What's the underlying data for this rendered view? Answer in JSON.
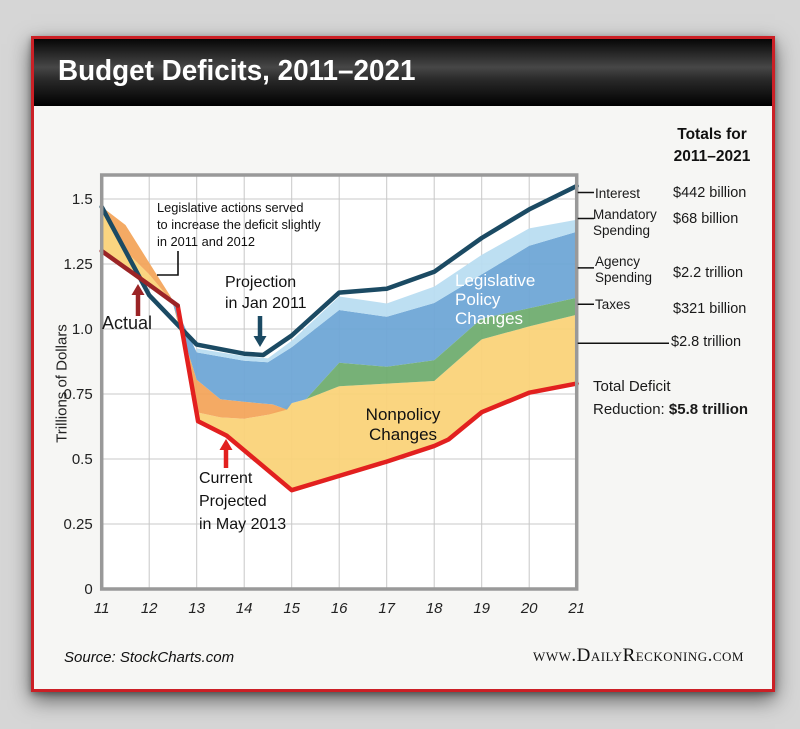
{
  "header": {
    "title": "Budget Deficits, 2011–2021"
  },
  "footer": {
    "source": "Source: StockCharts.com",
    "site": "www.DailyReckoning.com"
  },
  "totals_panel": {
    "title_line1": "Totals for",
    "title_line2": "2011–2021",
    "rows": [
      {
        "label": "Interest",
        "label2": "",
        "value": "$442 billion"
      },
      {
        "label": "Mandatory",
        "label2": "Spending",
        "value": "$68 billion"
      },
      {
        "label": "Agency",
        "label2": "Spending",
        "value": "$2.2 trillion"
      },
      {
        "label": "Taxes",
        "label2": "",
        "value": "$321 billion"
      },
      {
        "label": "",
        "label2": "",
        "value": "$2.8 trillion"
      }
    ],
    "total_line1": "Total Deficit",
    "total_line2_prefix": "Reduction: ",
    "total_line2_value": "$5.8 trillion"
  },
  "chart_data": {
    "type": "area",
    "title": "Budget Deficits, 2011–2021",
    "ylabel": "Trillions of Dollars",
    "x_range": [
      11,
      21
    ],
    "y_range": [
      0,
      1.59
    ],
    "x_ticks": [
      "11",
      "12",
      "13",
      "14",
      "15",
      "16",
      "17",
      "18",
      "19",
      "20",
      "21"
    ],
    "y_ticks": [
      {
        "label": "0",
        "v": 0
      },
      {
        "label": "0.25",
        "v": 0.25
      },
      {
        "label": "0.5",
        "v": 0.5
      },
      {
        "label": "0.75",
        "v": 0.75
      },
      {
        "label": "1.0",
        "v": 1.0
      },
      {
        "label": "1.25",
        "v": 1.25
      },
      {
        "label": "1.5",
        "v": 1.5
      }
    ],
    "grid": true,
    "colors": {
      "navy": "#1b4a63",
      "bright_red": "#e2201f",
      "dark_red": "#9b2426",
      "blue": "#6fa6d6",
      "light_blue": "#b9ddf1",
      "green": "#70ad70",
      "yellow": "#fad379",
      "orange": "#f3a55c",
      "grid": "#c8c8c8",
      "frame": "#999999",
      "accent_red": "#cb2026"
    },
    "series": [
      {
        "name": "projection_jan_2011",
        "color": "#1b4a63",
        "width": 4.5,
        "points": [
          [
            11,
            1.47
          ],
          [
            12,
            1.13
          ],
          [
            13,
            0.94
          ],
          [
            14,
            0.905
          ],
          [
            14.4,
            0.9
          ],
          [
            15,
            0.975
          ],
          [
            16,
            1.14
          ],
          [
            17,
            1.155
          ],
          [
            18,
            1.22
          ],
          [
            19,
            1.35
          ],
          [
            20,
            1.46
          ],
          [
            21,
            1.55
          ]
        ]
      },
      {
        "name": "current_projected_may_2013",
        "color": "#e2201f",
        "width": 4.5,
        "points": [
          [
            12.6,
            1.09
          ],
          [
            13.03,
            0.645
          ],
          [
            13.63,
            0.59
          ],
          [
            15,
            0.38
          ],
          [
            16,
            0.435
          ],
          [
            17,
            0.49
          ],
          [
            18,
            0.55
          ],
          [
            18.3,
            0.575
          ],
          [
            19,
            0.68
          ],
          [
            20,
            0.755
          ],
          [
            21,
            0.79
          ]
        ]
      },
      {
        "name": "actual",
        "color": "#9b2426",
        "width": 4.5,
        "points": [
          [
            11,
            1.3
          ],
          [
            12,
            1.17
          ],
          [
            12.6,
            1.09
          ]
        ]
      }
    ],
    "bands": [
      {
        "name": "nonpolicy_changes_yellow",
        "color": "#fad379",
        "top": [
          [
            11,
            1.455
          ],
          [
            11.5,
            1.3
          ],
          [
            12,
            1.21
          ],
          [
            12.5,
            1.1
          ],
          [
            12.8,
            0.88
          ],
          [
            13,
            0.68
          ],
          [
            13.5,
            0.66
          ],
          [
            14,
            0.655
          ],
          [
            14.5,
            0.67
          ],
          [
            15,
            0.715
          ],
          [
            15.3,
            0.73
          ],
          [
            16,
            0.78
          ],
          [
            17,
            0.79
          ],
          [
            18,
            0.8
          ],
          [
            19,
            0.96
          ],
          [
            20,
            1.01
          ],
          [
            21,
            1.055
          ]
        ],
        "bottom": [
          [
            11,
            1.3
          ],
          [
            12,
            1.17
          ],
          [
            12.6,
            1.09
          ],
          [
            13.03,
            0.645
          ],
          [
            13.63,
            0.59
          ],
          [
            15,
            0.38
          ],
          [
            16,
            0.435
          ],
          [
            17,
            0.49
          ],
          [
            18,
            0.55
          ],
          [
            18.3,
            0.575
          ],
          [
            19,
            0.68
          ],
          [
            20,
            0.755
          ],
          [
            21,
            0.79
          ]
        ]
      },
      {
        "name": "legislative_2011_2012_orange",
        "color": "#f3a55c",
        "top": [
          [
            11,
            1.47
          ],
          [
            11.5,
            1.4
          ],
          [
            12,
            1.255
          ],
          [
            12.45,
            1.125
          ],
          [
            13,
            0.805
          ],
          [
            13.5,
            0.73
          ],
          [
            14,
            0.72
          ],
          [
            14.6,
            0.71
          ],
          [
            14.9,
            0.69
          ]
        ],
        "bottom": [
          [
            11,
            1.455
          ],
          [
            11.5,
            1.3
          ],
          [
            12,
            1.21
          ],
          [
            12.5,
            1.1
          ],
          [
            12.8,
            0.88
          ],
          [
            13,
            0.68
          ],
          [
            13.5,
            0.66
          ],
          [
            14,
            0.655
          ],
          [
            14.5,
            0.67
          ],
          [
            14.9,
            0.69
          ]
        ]
      },
      {
        "name": "agency_spending_blue",
        "color": "#6fa6d6",
        "top": [
          [
            12.45,
            1.125
          ],
          [
            13,
            0.91
          ],
          [
            14,
            0.878
          ],
          [
            14.5,
            0.872
          ],
          [
            15,
            0.93
          ],
          [
            16,
            1.073
          ],
          [
            17,
            1.047
          ],
          [
            18,
            1.1
          ],
          [
            19,
            1.21
          ],
          [
            20,
            1.32
          ],
          [
            21,
            1.374
          ]
        ],
        "bottom": [
          [
            12.45,
            1.125
          ],
          [
            13,
            0.805
          ],
          [
            13.5,
            0.73
          ],
          [
            14,
            0.72
          ],
          [
            14.6,
            0.71
          ],
          [
            14.9,
            0.69
          ],
          [
            15,
            0.715
          ],
          [
            15.3,
            0.73
          ],
          [
            16,
            0.87
          ],
          [
            17,
            0.855
          ],
          [
            18,
            0.88
          ],
          [
            19,
            1.04
          ],
          [
            20,
            1.08
          ],
          [
            21,
            1.12
          ]
        ]
      },
      {
        "name": "taxes_green",
        "color": "#70ad70",
        "top": [
          [
            15.3,
            0.73
          ],
          [
            16,
            0.87
          ],
          [
            17,
            0.855
          ],
          [
            18,
            0.88
          ],
          [
            19,
            1.04
          ],
          [
            20,
            1.08
          ],
          [
            21,
            1.12
          ]
        ],
        "bottom": [
          [
            15.3,
            0.73
          ],
          [
            16,
            0.78
          ],
          [
            17,
            0.79
          ],
          [
            18,
            0.8
          ],
          [
            19,
            0.96
          ],
          [
            20,
            1.01
          ],
          [
            21,
            1.055
          ]
        ]
      },
      {
        "name": "mandatory_spending_lightblue",
        "color": "#b9ddf1",
        "top": [
          [
            13,
            0.925
          ],
          [
            14,
            0.895
          ],
          [
            14.5,
            0.887
          ],
          [
            15,
            0.955
          ],
          [
            16,
            1.125
          ],
          [
            17,
            1.098
          ],
          [
            18,
            1.163
          ],
          [
            19,
            1.285
          ],
          [
            20,
            1.387
          ],
          [
            21,
            1.42
          ]
        ],
        "bottom": [
          [
            13,
            0.91
          ],
          [
            14,
            0.878
          ],
          [
            14.5,
            0.872
          ],
          [
            15,
            0.93
          ],
          [
            16,
            1.073
          ],
          [
            17,
            1.047
          ],
          [
            18,
            1.1
          ],
          [
            19,
            1.21
          ],
          [
            20,
            1.32
          ],
          [
            21,
            1.374
          ]
        ]
      }
    ],
    "callouts": [
      {
        "name": "interest_tick",
        "v": 1.525,
        "long": false
      },
      {
        "name": "mandatory_tick",
        "v": 1.425,
        "long": false
      },
      {
        "name": "agency_tick",
        "v": 1.235,
        "long": false
      },
      {
        "name": "taxes_tick",
        "v": 1.095,
        "long": false
      },
      {
        "name": "nonpolicy_total_tick",
        "v": 0.945,
        "long": true
      }
    ],
    "annotations": {
      "legislative_note": [
        "Legislative actions served",
        "to increase the deficit slightly",
        "in 2011 and 2012"
      ],
      "projection": [
        "Projection",
        "in Jan 2011"
      ],
      "actual": "Actual",
      "current": [
        "Current",
        "Projected",
        "in May 2013"
      ],
      "legislative_policy": [
        "Legislative",
        "Policy",
        "Changes"
      ],
      "nonpolicy": [
        "Nonpolicy",
        "Changes"
      ]
    }
  }
}
